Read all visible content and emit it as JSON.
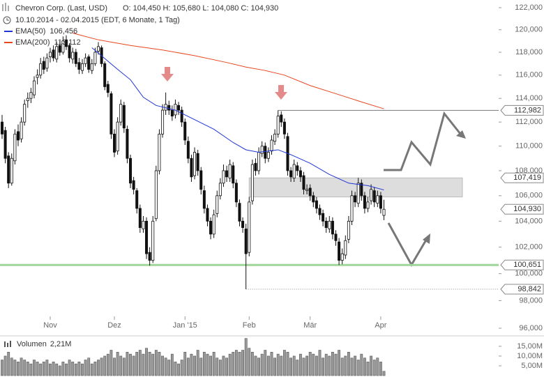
{
  "chart_data": {
    "type": "candlestick",
    "title": "Chevron Corp. (Last, USD)",
    "ohlc_text": "O: 104,450  H: 105,680  L: 104,080  C: 104,930",
    "subtitle": "10.10.2014 - 02.04.2015 (EDT, 6 Monate, 1 Tag)",
    "log_scale": true,
    "ylim": [
      96,
      122
    ],
    "yticks": [
      {
        "value": 96,
        "label": "96,000"
      },
      {
        "value": 98,
        "label": "98,000"
      },
      {
        "value": 100,
        "label": "100,000"
      },
      {
        "value": 102,
        "label": "102,000"
      },
      {
        "value": 104,
        "label": "104,000"
      },
      {
        "value": 106,
        "label": "106,000"
      },
      {
        "value": 108,
        "label": "108,000"
      },
      {
        "value": 110,
        "label": "110,000"
      },
      {
        "value": 112,
        "label": "112,000"
      },
      {
        "value": 114,
        "label": "114,000"
      },
      {
        "value": 116,
        "label": "116,000"
      },
      {
        "value": 118,
        "label": "118,000"
      },
      {
        "value": 120,
        "label": "120,000"
      },
      {
        "value": 122,
        "label": "122,000"
      }
    ],
    "xlim": [
      -0.65,
      154.75
    ],
    "xticks": [
      {
        "value": 15,
        "label": "Nov"
      },
      {
        "value": 35,
        "label": "Dez"
      },
      {
        "value": 57,
        "label": "Jan '15"
      },
      {
        "value": 77,
        "label": "Feb"
      },
      {
        "value": 96,
        "label": "Mär"
      },
      {
        "value": 118,
        "label": "Apr"
      }
    ],
    "candles": [
      [
        112,
        112.6,
        110.6,
        111
      ],
      [
        111.3,
        111.6,
        108.6,
        109
      ],
      [
        109.2,
        109.5,
        106.6,
        107
      ],
      [
        107,
        109.4,
        106.8,
        109
      ],
      [
        108.8,
        111.4,
        108.5,
        111
      ],
      [
        111.2,
        111.8,
        110,
        110.5
      ],
      [
        110.6,
        112.4,
        110.3,
        112
      ],
      [
        112,
        113.9,
        111.7,
        113.5
      ],
      [
        113.8,
        114.5,
        113.2,
        114
      ],
      [
        114,
        114.9,
        113.6,
        114.5
      ],
      [
        114.3,
        115.9,
        114,
        115.5
      ],
      [
        115.8,
        116.5,
        115.2,
        116
      ],
      [
        116,
        117.5,
        115.7,
        117
      ],
      [
        117.2,
        117.6,
        116.1,
        116.5
      ],
      [
        116.6,
        117.9,
        116.3,
        117.5
      ],
      [
        117.6,
        118.4,
        117.1,
        118
      ],
      [
        118.2,
        118.6,
        117.2,
        117.5
      ],
      [
        117.4,
        118.9,
        117.1,
        118.5
      ],
      [
        118.6,
        119,
        117.7,
        118
      ],
      [
        118,
        119.4,
        117.8,
        119
      ],
      [
        119.1,
        119.5,
        118.2,
        118.5
      ],
      [
        118.6,
        118.8,
        117.1,
        117.5
      ],
      [
        117.4,
        118.4,
        117,
        118
      ],
      [
        118,
        118.3,
        116.7,
        117
      ],
      [
        117.1,
        117.5,
        116.1,
        116.5
      ],
      [
        116.4,
        117.4,
        116.1,
        117
      ],
      [
        117,
        117.9,
        116.7,
        117.5
      ],
      [
        117.6,
        117.8,
        116.2,
        116.5
      ],
      [
        116.4,
        117.4,
        116.1,
        117
      ],
      [
        117,
        118.4,
        116.8,
        118
      ],
      [
        118.1,
        118.9,
        117.8,
        118.5
      ],
      [
        118.4,
        118.6,
        116.7,
        117
      ],
      [
        117,
        117.2,
        114.7,
        115
      ],
      [
        115.2,
        115.5,
        114.1,
        114.5
      ],
      [
        114.4,
        114.6,
        110.6,
        111
      ],
      [
        111,
        111.4,
        109.1,
        109.5
      ],
      [
        109.6,
        112.4,
        109.3,
        112
      ],
      [
        112,
        113.9,
        111.7,
        113.5
      ],
      [
        113.4,
        113.7,
        111.1,
        111.5
      ],
      [
        111.4,
        111.7,
        108.6,
        109
      ],
      [
        109,
        109.3,
        106.6,
        107
      ],
      [
        107.2,
        107.5,
        106.1,
        106.5
      ],
      [
        106.4,
        106.6,
        104.6,
        105
      ],
      [
        105,
        105.3,
        103.1,
        103.5
      ],
      [
        103.4,
        104.4,
        103.1,
        104
      ],
      [
        104,
        104.3,
        101.1,
        101.5
      ],
      [
        101.6,
        102,
        100.6,
        101
      ],
      [
        101,
        104.4,
        100.8,
        104
      ],
      [
        104.2,
        108.4,
        104,
        108
      ],
      [
        108,
        111.4,
        107.7,
        111
      ],
      [
        111,
        113.5,
        110.7,
        113
      ],
      [
        113,
        114.5,
        112.6,
        113.5
      ],
      [
        113.4,
        113.8,
        112.6,
        113
      ],
      [
        113,
        113.4,
        112.1,
        112.5
      ],
      [
        112.6,
        113.9,
        112.3,
        113.5
      ],
      [
        113.4,
        113.7,
        112.6,
        113
      ],
      [
        113,
        113.3,
        111.6,
        112
      ],
      [
        112,
        112.3,
        110.1,
        110.5
      ],
      [
        110.4,
        110.8,
        108.6,
        109
      ],
      [
        109,
        109.3,
        107.1,
        107.5
      ],
      [
        107.6,
        109.9,
        107.3,
        109.5
      ],
      [
        109.4,
        109.7,
        107.6,
        108
      ],
      [
        108,
        108.3,
        106.1,
        106.5
      ],
      [
        106.4,
        106.8,
        104.6,
        105
      ],
      [
        105,
        105.3,
        103.6,
        104
      ],
      [
        104,
        104.3,
        102.6,
        103
      ],
      [
        103,
        104.9,
        102.7,
        104.5
      ],
      [
        104.6,
        106.4,
        104.3,
        106
      ],
      [
        106,
        107.4,
        105.7,
        107
      ],
      [
        107,
        108.5,
        106.7,
        108
      ],
      [
        108,
        108.4,
        107.1,
        107.5
      ],
      [
        107.4,
        108.9,
        107.1,
        108.5
      ],
      [
        108.4,
        108.7,
        106.6,
        107
      ],
      [
        107,
        107.3,
        105.1,
        105.5
      ],
      [
        105.4,
        105.7,
        103.6,
        104
      ],
      [
        104,
        104.3,
        103.1,
        103.5
      ],
      [
        103.4,
        103.8,
        98.842,
        101.5
      ],
      [
        101.6,
        105.9,
        101.3,
        105.5
      ],
      [
        105.6,
        108.9,
        105.3,
        108.5
      ],
      [
        108.6,
        109,
        107.6,
        108
      ],
      [
        108,
        109.9,
        107.7,
        109.5
      ],
      [
        109.4,
        110.4,
        109.1,
        110
      ],
      [
        110,
        110.3,
        108.6,
        109
      ],
      [
        109,
        109.9,
        108.7,
        109.5
      ],
      [
        109.6,
        110.9,
        109.3,
        110.5
      ],
      [
        110.4,
        111.4,
        110.1,
        111
      ],
      [
        111,
        112.982,
        110.7,
        112.5
      ],
      [
        112.6,
        112.9,
        111.6,
        112
      ],
      [
        112,
        112.3,
        110.6,
        111
      ],
      [
        110.8,
        111.1,
        107.6,
        108
      ],
      [
        108,
        108.3,
        107.1,
        107.5
      ],
      [
        107.4,
        108.9,
        107.1,
        108.5
      ],
      [
        108.4,
        108.7,
        107.6,
        108
      ],
      [
        108,
        108.3,
        107.1,
        107.5
      ],
      [
        107.6,
        107.9,
        106.1,
        106.5
      ],
      [
        106.4,
        106.9,
        106.1,
        106.5
      ],
      [
        106.6,
        106.9,
        105.6,
        106
      ],
      [
        106,
        106.3,
        105.1,
        105.5
      ],
      [
        105.6,
        105.9,
        104.6,
        105
      ],
      [
        105,
        105.3,
        104.1,
        104.5
      ],
      [
        104.6,
        104.9,
        103.6,
        104
      ],
      [
        104,
        104.3,
        103.1,
        103.5
      ],
      [
        103.4,
        104.4,
        103.1,
        104
      ],
      [
        104,
        104.3,
        102.6,
        103
      ],
      [
        103,
        103.3,
        102.1,
        102.5
      ],
      [
        102.4,
        102.7,
        100.651,
        101
      ],
      [
        101,
        101.9,
        100.7,
        101.5
      ],
      [
        101.4,
        102.9,
        101.1,
        102.5
      ],
      [
        102.6,
        104.4,
        102.3,
        104
      ],
      [
        104,
        106.4,
        103.7,
        106
      ],
      [
        106,
        106.3,
        105.1,
        105.5
      ],
      [
        105.4,
        107.419,
        105.1,
        107
      ],
      [
        107,
        107.3,
        105.6,
        106
      ],
      [
        106,
        106.3,
        104.6,
        105
      ],
      [
        105,
        105.9,
        104.7,
        105.5
      ],
      [
        105.6,
        106.9,
        105.3,
        106.5
      ],
      [
        106.4,
        106.7,
        105.1,
        105.5
      ],
      [
        105.4,
        106.4,
        105.1,
        106
      ],
      [
        106,
        106.3,
        104.6,
        105
      ],
      [
        104.45,
        105.68,
        104.08,
        104.93
      ]
    ],
    "series": [
      {
        "name": "EMA(50)",
        "color": "#1f35d6",
        "value_label": "106,456",
        "x": [
          28,
          36,
          40,
          44,
          48,
          54,
          60,
          66,
          72,
          76,
          80,
          86,
          90,
          96,
          102,
          108,
          114,
          119
        ],
        "values": [
          118.4,
          116.5,
          115.6,
          114.1,
          113.4,
          113.0,
          112.2,
          111.4,
          110.3,
          109.7,
          109.5,
          109.7,
          109.3,
          108.6,
          107.7,
          107.0,
          106.8,
          106.456
        ]
      },
      {
        "name": "EMA(200)",
        "color": "#e8461e",
        "value_label": "113,112",
        "x": [
          22,
          30,
          40,
          50,
          60,
          70,
          76,
          82,
          88,
          96,
          104,
          112,
          119
        ],
        "values": [
          119.7,
          119.1,
          118.6,
          118.2,
          117.7,
          117.1,
          116.7,
          116.4,
          116.0,
          115.1,
          114.4,
          113.7,
          113.112
        ]
      }
    ],
    "levels": [
      {
        "value": 112.982,
        "label": "112,982",
        "from": 86,
        "style": "line"
      },
      {
        "value": 107.419,
        "label": "107,419",
        "from": 77,
        "style": "zone",
        "zone_low": 105.9
      },
      {
        "value": 104.93,
        "label": "104,930",
        "style": "price"
      },
      {
        "value": 100.651,
        "label": "100,651",
        "from": -0.65,
        "style": "support",
        "color": "#9fd59a"
      },
      {
        "value": 98.842,
        "label": "98,842",
        "from": 76,
        "style": "dotted"
      }
    ],
    "volume": {
      "name": "Volumen",
      "value_label": "2,21M",
      "ylim": [
        0,
        19.6
      ],
      "yticks": [
        {
          "value": 5,
          "label": "5,00M"
        },
        {
          "value": 10,
          "label": "10,00M"
        },
        {
          "value": 15,
          "label": "15,00M"
        }
      ],
      "values": [
        8,
        10,
        12,
        9,
        8,
        7,
        9,
        8,
        7,
        6,
        8,
        7,
        6,
        7,
        8,
        6,
        7,
        6,
        5,
        7,
        6,
        8,
        7,
        6,
        7,
        6,
        8,
        9,
        6,
        7,
        8,
        9,
        10,
        11,
        13,
        9,
        12,
        10,
        9,
        12,
        11,
        10,
        12,
        13,
        11,
        14,
        12,
        11,
        13,
        12,
        10,
        9,
        8,
        11,
        7,
        6,
        8,
        12,
        9,
        11,
        10,
        13,
        9,
        12,
        11,
        10,
        12,
        9,
        8,
        10,
        9,
        11,
        12,
        13,
        12,
        13,
        19,
        14,
        12,
        10,
        9,
        11,
        13,
        10,
        12,
        9,
        11,
        10,
        13,
        12,
        9,
        10,
        8,
        11,
        9,
        10,
        12,
        11,
        10,
        13,
        9,
        11,
        10,
        12,
        11,
        13,
        9,
        10,
        12,
        9,
        10,
        8,
        11,
        9,
        7,
        10,
        8,
        9,
        7,
        2.21
      ]
    }
  }
}
